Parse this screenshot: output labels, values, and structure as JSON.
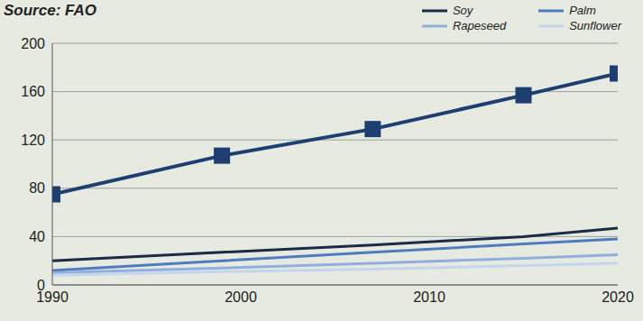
{
  "chart_data": {
    "type": "line",
    "title": "Source: FAO",
    "x": [
      1990,
      1999,
      2007,
      2015,
      2020
    ],
    "xlim": [
      1990,
      2020
    ],
    "xticks": [
      1990,
      2000,
      2010,
      2020
    ],
    "ylim": [
      0,
      200
    ],
    "yticks": [
      0,
      40,
      80,
      120,
      160,
      200
    ],
    "grid": true,
    "legend": "top right",
    "series": [
      {
        "color": "#1f3f73",
        "marker": "square",
        "values": [
          75,
          107,
          129,
          157,
          175
        ]
      },
      {
        "name": "Soy",
        "color": "#1b2a45",
        "values": [
          20,
          27,
          33,
          40,
          47
        ]
      },
      {
        "name": "Palm",
        "color": "#4f7cc0",
        "values": [
          12,
          20,
          27,
          34,
          38
        ]
      },
      {
        "name": "Rapeseed",
        "color": "#8fb0de",
        "values": [
          10,
          14,
          18,
          22,
          25
        ]
      },
      {
        "name": "Sunflower",
        "color": "#c4d6ee",
        "values": [
          8,
          11,
          13,
          16,
          18
        ]
      }
    ]
  }
}
